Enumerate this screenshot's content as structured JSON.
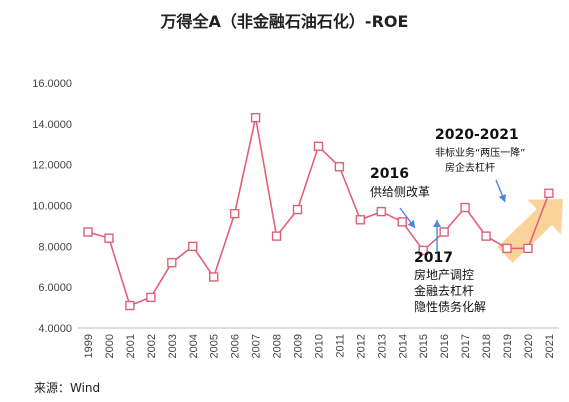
{
  "chart_data": {
    "type": "line",
    "title": "万得全A（非金融石油石化）-ROE",
    "x": [
      "1999",
      "2000",
      "2001",
      "2002",
      "2003",
      "2004",
      "2005",
      "2006",
      "2007",
      "2008",
      "2009",
      "2010",
      "2011",
      "2012",
      "2013",
      "2014",
      "2015",
      "2016",
      "2017",
      "2018",
      "2019",
      "2020",
      "2021"
    ],
    "series": [
      {
        "values": [
          8.7,
          8.4,
          5.1,
          5.5,
          7.2,
          8.0,
          6.5,
          9.6,
          14.3,
          8.5,
          9.8,
          12.9,
          11.9,
          9.3,
          9.7,
          9.2,
          7.8,
          8.7,
          9.9,
          8.5,
          7.9,
          7.9,
          10.6
        ]
      }
    ],
    "ytick_labels": [
      "4.0000",
      "6.0000",
      "8.0000",
      "10.0000",
      "12.0000",
      "14.0000",
      "16.0000"
    ],
    "ylim": [
      4,
      16
    ],
    "grid": false,
    "annotations": [
      {
        "head": "2016",
        "lines": [
          "供给侧改革"
        ]
      },
      {
        "head": "2017",
        "lines": [
          "房地产调控",
          "金融去杠杆",
          "隐性债务化解"
        ]
      },
      {
        "head": "2020-2021",
        "lines": [
          "非标业务“两压一降”",
          "房企去杠杆"
        ]
      }
    ],
    "colors": {
      "line": "#e0607a",
      "marker_fill": "#ffffff",
      "arrow_blue": "#4a88d9",
      "trend_arrow": "#fbd29a"
    }
  },
  "source": "来源：Wind"
}
